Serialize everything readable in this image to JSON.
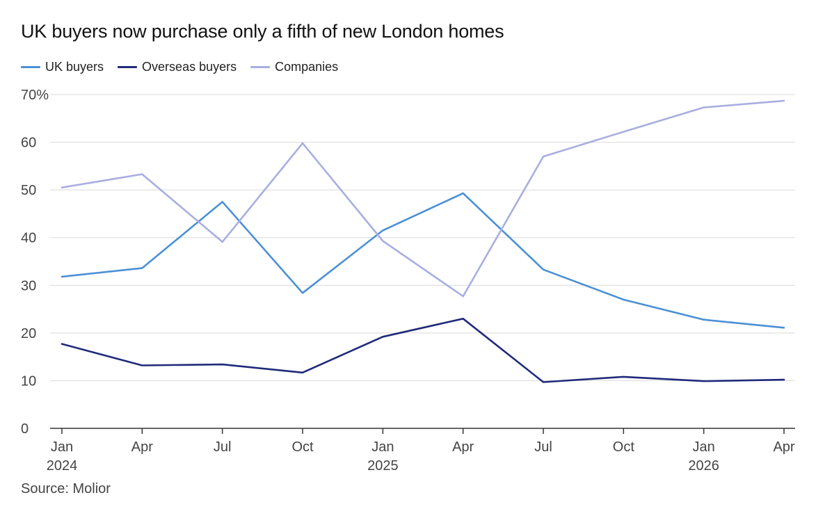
{
  "title": "UK buyers now purchase only a fifth of new London homes",
  "source": "Source: Molior",
  "colors": {
    "uk": "#4a90d6",
    "overseas": "#1f2a7a",
    "companies": "#a9aee0",
    "grid": "#d9d9d9",
    "axis": "#333333"
  },
  "chart_data": {
    "type": "line",
    "title": "UK buyers now purchase only a fifth of new London homes",
    "xlabel": "",
    "ylabel": "",
    "ylim": [
      0,
      70
    ],
    "yticks": [
      {
        "value": 0,
        "label": "0"
      },
      {
        "value": 10,
        "label": "10"
      },
      {
        "value": 20,
        "label": "20"
      },
      {
        "value": 30,
        "label": "30"
      },
      {
        "value": 40,
        "label": "40"
      },
      {
        "value": 50,
        "label": "50"
      },
      {
        "value": 60,
        "label": "60"
      },
      {
        "value": 70,
        "label": "70%"
      }
    ],
    "categories": [
      "Jan 2024",
      "Apr 2024",
      "Jul 2024",
      "Oct 2024",
      "Jan 2025",
      "Apr 2025",
      "Jul 2025",
      "Oct 2025",
      "Jan 2026",
      "Apr 2026"
    ],
    "xticks": [
      {
        "month": "Jan",
        "year": "2024"
      },
      {
        "month": "Apr",
        "year": ""
      },
      {
        "month": "Jul",
        "year": ""
      },
      {
        "month": "Oct",
        "year": ""
      },
      {
        "month": "Jan",
        "year": "2025"
      },
      {
        "month": "Apr",
        "year": ""
      },
      {
        "month": "Jul",
        "year": ""
      },
      {
        "month": "Oct",
        "year": ""
      },
      {
        "month": "Jan",
        "year": "2026"
      },
      {
        "month": "Apr",
        "year": ""
      }
    ],
    "legend_position": "top-left",
    "grid": true,
    "series": [
      {
        "name": "UK buyers",
        "color": "#4a90d6",
        "values": [
          31.8,
          33.6,
          47.5,
          28.4,
          41.5,
          49.3,
          33.3,
          27.0,
          22.8,
          21.1
        ]
      },
      {
        "name": "Overseas buyers",
        "color": "#1f2a7a",
        "values": [
          17.7,
          13.2,
          13.4,
          11.7,
          19.2,
          23.0,
          9.7,
          10.8,
          9.9,
          10.2
        ]
      },
      {
        "name": "Companies",
        "color": "#a9aee0",
        "values": [
          50.5,
          53.3,
          39.1,
          59.8,
          39.3,
          27.7,
          57.0,
          62.2,
          67.3,
          68.7
        ]
      }
    ]
  }
}
